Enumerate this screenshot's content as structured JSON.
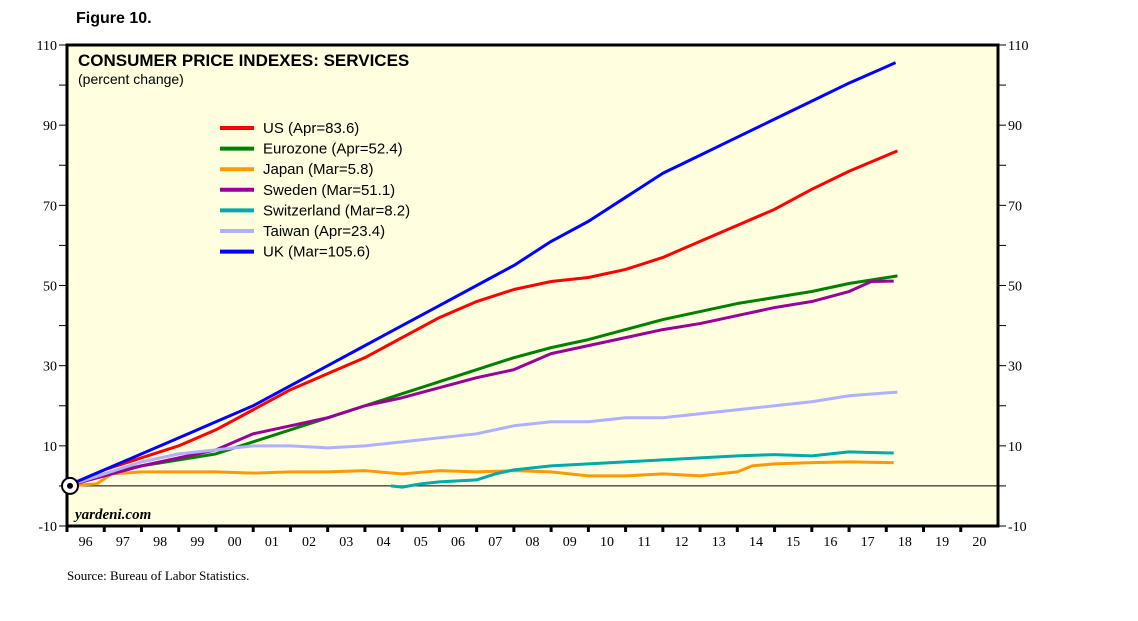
{
  "figure_label": "Figure 10.",
  "source": "Source: Bureau of Labor Statistics.",
  "watermark": "yardeni.com",
  "chart_data": {
    "type": "line",
    "title": "CONSUMER PRICE INDEXES: SERVICES",
    "subtitle": "(percent change)",
    "ylim": [
      -10,
      110
    ],
    "yticks_labeled": [
      110,
      90,
      70,
      50,
      30,
      10,
      -10
    ],
    "xlim": [
      1996,
      2021
    ],
    "xtick_labels": [
      "96",
      "97",
      "98",
      "99",
      "00",
      "01",
      "02",
      "03",
      "04",
      "05",
      "06",
      "07",
      "08",
      "09",
      "10",
      "11",
      "12",
      "13",
      "14",
      "15",
      "16",
      "17",
      "18",
      "19",
      "20"
    ],
    "legend_position": "top-left",
    "series": [
      {
        "name": "US (Apr=83.6)",
        "color": "#ff0000",
        "points": [
          [
            1996,
            0
          ],
          [
            1997,
            4
          ],
          [
            1998,
            7
          ],
          [
            1999,
            10
          ],
          [
            2000,
            14
          ],
          [
            2001,
            19
          ],
          [
            2002,
            24
          ],
          [
            2003,
            28
          ],
          [
            2004,
            32
          ],
          [
            2005,
            37
          ],
          [
            2006,
            42
          ],
          [
            2007,
            46
          ],
          [
            2008,
            49
          ],
          [
            2008.5,
            50
          ],
          [
            2009,
            51
          ],
          [
            2010,
            52
          ],
          [
            2011,
            54
          ],
          [
            2012,
            57
          ],
          [
            2013,
            61
          ],
          [
            2014,
            65
          ],
          [
            2015,
            69
          ],
          [
            2016,
            74
          ],
          [
            2017,
            78.5
          ],
          [
            2018.3,
            83.6
          ]
        ]
      },
      {
        "name": "Eurozone (Apr=52.4)",
        "color": "#008000",
        "points": [
          [
            1996,
            0
          ],
          [
            1997,
            3
          ],
          [
            1998,
            5
          ],
          [
            1999,
            6.5
          ],
          [
            2000,
            8
          ],
          [
            2001,
            11
          ],
          [
            2002,
            14
          ],
          [
            2003,
            17
          ],
          [
            2004,
            20
          ],
          [
            2005,
            23
          ],
          [
            2006,
            26
          ],
          [
            2007,
            29
          ],
          [
            2008,
            32
          ],
          [
            2009,
            34.5
          ],
          [
            2010,
            36.5
          ],
          [
            2011,
            39
          ],
          [
            2012,
            41.5
          ],
          [
            2013,
            43.5
          ],
          [
            2014,
            45.5
          ],
          [
            2015,
            47
          ],
          [
            2016,
            48.5
          ],
          [
            2017,
            50.5
          ],
          [
            2018.3,
            52.4
          ]
        ]
      },
      {
        "name": "Japan (Mar=5.8)",
        "color": "#ff9900",
        "points": [
          [
            1996,
            0
          ],
          [
            1996.8,
            0.5
          ],
          [
            1997.2,
            3
          ],
          [
            1998,
            3.5
          ],
          [
            1999,
            3.5
          ],
          [
            2000,
            3.5
          ],
          [
            2001,
            3.2
          ],
          [
            2002,
            3.5
          ],
          [
            2003,
            3.5
          ],
          [
            2004,
            3.8
          ],
          [
            2005,
            3
          ],
          [
            2006,
            3.8
          ],
          [
            2007,
            3.5
          ],
          [
            2008,
            3.8
          ],
          [
            2009,
            3.5
          ],
          [
            2010,
            2.5
          ],
          [
            2011,
            2.5
          ],
          [
            2012,
            3
          ],
          [
            2013,
            2.5
          ],
          [
            2014,
            3.5
          ],
          [
            2014.4,
            5
          ],
          [
            2015,
            5.5
          ],
          [
            2016,
            5.8
          ],
          [
            2017,
            6
          ],
          [
            2018.2,
            5.8
          ]
        ]
      },
      {
        "name": "Sweden (Mar=51.1)",
        "color": "#990099",
        "points": [
          [
            1996,
            0
          ],
          [
            1997,
            2.5
          ],
          [
            1998,
            5
          ],
          [
            1999,
            7
          ],
          [
            2000,
            9
          ],
          [
            2001,
            13
          ],
          [
            2002,
            15
          ],
          [
            2003,
            17
          ],
          [
            2004,
            20
          ],
          [
            2005,
            22
          ],
          [
            2006,
            24.5
          ],
          [
            2007,
            27
          ],
          [
            2008,
            29
          ],
          [
            2009,
            33
          ],
          [
            2010,
            35
          ],
          [
            2011,
            37
          ],
          [
            2012,
            39
          ],
          [
            2013,
            40.5
          ],
          [
            2014,
            42.5
          ],
          [
            2015,
            44.5
          ],
          [
            2016,
            46
          ],
          [
            2017,
            48.5
          ],
          [
            2017.6,
            51
          ],
          [
            2018.2,
            51.1
          ]
        ]
      },
      {
        "name": "Switzerland (Mar=8.2)",
        "color": "#00aaaa",
        "points": [
          [
            2004.7,
            0
          ],
          [
            2005,
            -0.3
          ],
          [
            2005.5,
            0.5
          ],
          [
            2006,
            1
          ],
          [
            2007,
            1.5
          ],
          [
            2007.5,
            3
          ],
          [
            2008,
            4
          ],
          [
            2009,
            5
          ],
          [
            2010,
            5.5
          ],
          [
            2011,
            6
          ],
          [
            2012,
            6.5
          ],
          [
            2013,
            7
          ],
          [
            2014,
            7.5
          ],
          [
            2015,
            7.8
          ],
          [
            2016,
            7.5
          ],
          [
            2017,
            8.5
          ],
          [
            2018.2,
            8.2
          ]
        ]
      },
      {
        "name": "Taiwan (Apr=23.4)",
        "color": "#b0b0ff",
        "points": [
          [
            1996,
            0
          ],
          [
            1997,
            3
          ],
          [
            1998,
            6
          ],
          [
            1999,
            8
          ],
          [
            2000,
            9
          ],
          [
            2001,
            10
          ],
          [
            2002,
            10
          ],
          [
            2003,
            9.5
          ],
          [
            2004,
            10
          ],
          [
            2005,
            11
          ],
          [
            2006,
            12
          ],
          [
            2007,
            13
          ],
          [
            2008,
            15
          ],
          [
            2009,
            16
          ],
          [
            2010,
            16
          ],
          [
            2011,
            17
          ],
          [
            2012,
            17
          ],
          [
            2013,
            18
          ],
          [
            2014,
            19
          ],
          [
            2015,
            20
          ],
          [
            2016,
            21
          ],
          [
            2017,
            22.5
          ],
          [
            2018.3,
            23.4
          ]
        ]
      },
      {
        "name": "UK (Mar=105.6)",
        "color": "#0000ff",
        "points": [
          [
            1996,
            0
          ],
          [
            1997,
            4
          ],
          [
            1998,
            8
          ],
          [
            1999,
            12
          ],
          [
            2000,
            16
          ],
          [
            2001,
            20
          ],
          [
            2002,
            25
          ],
          [
            2003,
            30
          ],
          [
            2004,
            35
          ],
          [
            2005,
            40
          ],
          [
            2006,
            45
          ],
          [
            2007,
            50
          ],
          [
            2008,
            55
          ],
          [
            2009,
            61
          ],
          [
            2010,
            66
          ],
          [
            2011,
            72
          ],
          [
            2012,
            78
          ],
          [
            2013,
            82.5
          ],
          [
            2014,
            87
          ],
          [
            2015,
            91.5
          ],
          [
            2016,
            96
          ],
          [
            2017,
            100.5
          ],
          [
            2018.25,
            105.6
          ]
        ]
      }
    ]
  }
}
